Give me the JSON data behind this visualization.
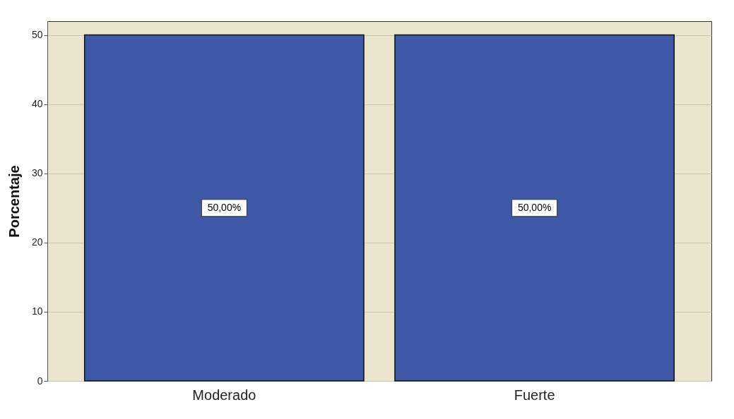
{
  "chart_data": {
    "type": "bar",
    "ylabel": "Porcentaje",
    "categories": [
      "Moderado",
      "Fuerte"
    ],
    "values": [
      50,
      50
    ],
    "value_labels": [
      "50,00%",
      "50,00%"
    ],
    "color": "#3f58a6",
    "ylim": [
      0,
      52
    ],
    "yticks": [
      0,
      10,
      20,
      30,
      40,
      50
    ],
    "grid": "y"
  }
}
